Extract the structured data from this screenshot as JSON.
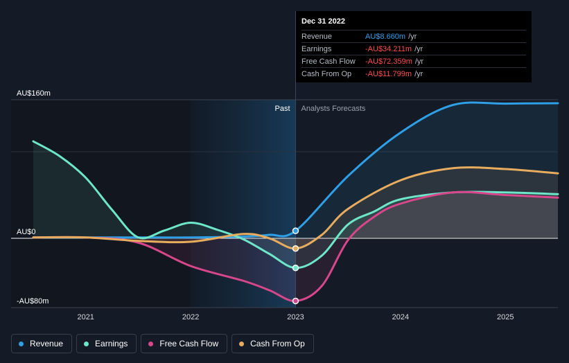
{
  "chart_data": {
    "type": "line",
    "y_axis": {
      "unit": "AU$ m",
      "ylim": [
        -80,
        160
      ],
      "tick_labels": [
        "AU$160m",
        "AU$0",
        "-AU$80m"
      ],
      "tick_values": [
        160,
        0,
        -80
      ]
    },
    "x_axis": {
      "xlim": [
        2020.5,
        2025.5
      ],
      "tick_labels": [
        "2021",
        "2022",
        "2023",
        "2024",
        "2025"
      ],
      "tick_values": [
        2021,
        2022,
        2023,
        2024,
        2025
      ]
    },
    "divider_x": 2023.0,
    "highlight_range": [
      2022.0,
      2023.0
    ],
    "regions": {
      "past": "Past",
      "forecast": "Analysts Forecasts"
    },
    "grid": true,
    "legend_placement": "bottom-left",
    "series": [
      {
        "name": "Revenue",
        "color": "#2f9fe6",
        "points": [
          [
            2020.5,
            1
          ],
          [
            2021.0,
            1
          ],
          [
            2021.5,
            1
          ],
          [
            2022.0,
            1
          ],
          [
            2022.5,
            2
          ],
          [
            2022.75,
            4
          ],
          [
            2023.0,
            8.66
          ],
          [
            2023.5,
            72
          ],
          [
            2024.0,
            122
          ],
          [
            2024.5,
            154
          ],
          [
            2025.0,
            155.5
          ],
          [
            2025.5,
            156
          ]
        ]
      },
      {
        "name": "Earnings",
        "color": "#6ee6c9",
        "points": [
          [
            2020.5,
            112
          ],
          [
            2020.75,
            95
          ],
          [
            2021.0,
            70
          ],
          [
            2021.25,
            33
          ],
          [
            2021.5,
            1
          ],
          [
            2021.75,
            9
          ],
          [
            2022.0,
            18
          ],
          [
            2022.25,
            10
          ],
          [
            2022.5,
            -1
          ],
          [
            2022.75,
            -18
          ],
          [
            2023.0,
            -34.211
          ],
          [
            2023.25,
            -20
          ],
          [
            2023.5,
            16
          ],
          [
            2023.75,
            31
          ],
          [
            2024.0,
            45
          ],
          [
            2024.5,
            53
          ],
          [
            2025.0,
            53
          ],
          [
            2025.5,
            51
          ]
        ]
      },
      {
        "name": "Free Cash Flow",
        "color": "#d8478b",
        "points": [
          [
            2020.5,
            1
          ],
          [
            2021.0,
            1
          ],
          [
            2021.5,
            -5
          ],
          [
            2022.0,
            -32
          ],
          [
            2022.5,
            -49
          ],
          [
            2022.75,
            -60
          ],
          [
            2023.0,
            -72.359
          ],
          [
            2023.25,
            -55
          ],
          [
            2023.5,
            -2
          ],
          [
            2023.75,
            25
          ],
          [
            2024.0,
            40
          ],
          [
            2024.5,
            53
          ],
          [
            2025.0,
            50
          ],
          [
            2025.5,
            47
          ]
        ]
      },
      {
        "name": "Cash From Op",
        "color": "#e8ac5e",
        "points": [
          [
            2020.5,
            1
          ],
          [
            2021.0,
            1
          ],
          [
            2021.5,
            -3
          ],
          [
            2022.0,
            -4
          ],
          [
            2022.5,
            5
          ],
          [
            2022.75,
            0
          ],
          [
            2023.0,
            -11.799
          ],
          [
            2023.25,
            4
          ],
          [
            2023.5,
            34
          ],
          [
            2024.0,
            67
          ],
          [
            2024.5,
            81
          ],
          [
            2025.0,
            80
          ],
          [
            2025.5,
            75
          ]
        ]
      }
    ]
  },
  "tooltip": {
    "date": "Dec 31 2022",
    "rows": [
      {
        "label": "Revenue",
        "value": "AU$8.660m",
        "unit": "/yr",
        "color": "#2f9fe6"
      },
      {
        "label": "Earnings",
        "value": "-AU$34.211m",
        "unit": "/yr",
        "color": "#ff4d4d"
      },
      {
        "label": "Free Cash Flow",
        "value": "-AU$72.359m",
        "unit": "/yr",
        "color": "#ff4d4d"
      },
      {
        "label": "Cash From Op",
        "value": "-AU$11.799m",
        "unit": "/yr",
        "color": "#ff4d4d"
      }
    ]
  },
  "legend": [
    {
      "label": "Revenue",
      "color": "#2f9fe6"
    },
    {
      "label": "Earnings",
      "color": "#6ee6c9"
    },
    {
      "label": "Free Cash Flow",
      "color": "#d8478b"
    },
    {
      "label": "Cash From Op",
      "color": "#e8ac5e"
    }
  ]
}
